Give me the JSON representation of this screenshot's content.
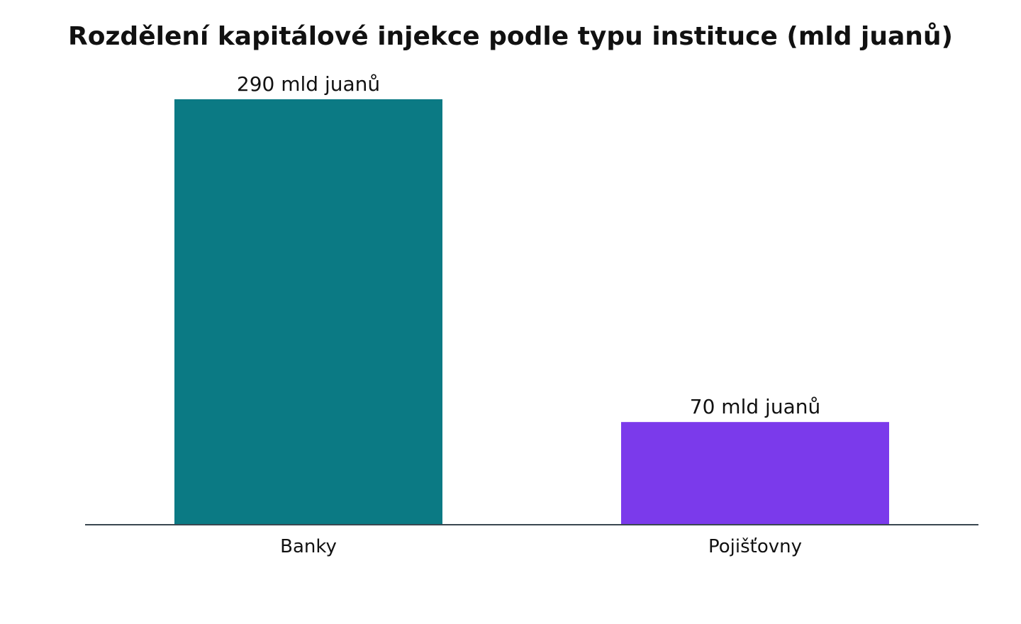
{
  "chart_data": {
    "type": "bar",
    "title": "Rozdělení kapitálové injekce podle typu instituce (mld juanů)",
    "xlabel": "",
    "ylabel": "",
    "categories": [
      "Banky",
      "Pojišťovny"
    ],
    "values": [
      290,
      70
    ],
    "data_labels": [
      "290 mld juanů",
      "70 mld juanů"
    ],
    "colors": [
      "#0b7a84",
      "#7b3aeb"
    ],
    "axis_color": "#3a4750",
    "ylim": [
      0,
      290
    ],
    "grid": false,
    "legend": "none"
  }
}
